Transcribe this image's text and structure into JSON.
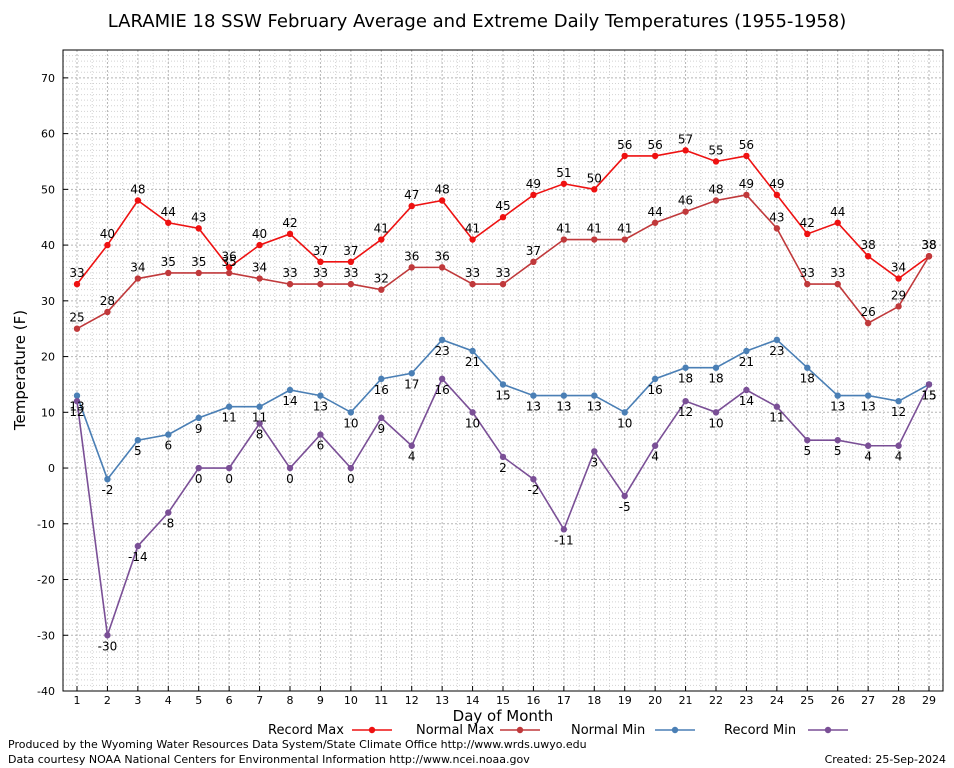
{
  "chart_data": {
    "type": "line",
    "title": "LARAMIE 18 SSW February Average and Extreme Daily Temperatures (1955-1958)",
    "xlabel": "Day of Month",
    "ylabel": "Temperature (F)",
    "xlim": [
      1,
      29
    ],
    "ylim": [
      -40,
      75
    ],
    "categories": [
      1,
      2,
      3,
      4,
      5,
      6,
      7,
      8,
      9,
      10,
      11,
      12,
      13,
      14,
      15,
      16,
      17,
      18,
      19,
      20,
      21,
      22,
      23,
      24,
      25,
      26,
      27,
      28,
      29
    ],
    "yticks": [
      -40,
      -30,
      -20,
      -10,
      0,
      10,
      20,
      30,
      40,
      50,
      60,
      70
    ],
    "grid": true,
    "legend_position": "bottom",
    "series": [
      {
        "name": "Record Max",
        "color": "#ee1111",
        "label_position": "above",
        "values": [
          33,
          40,
          48,
          44,
          43,
          36,
          40,
          42,
          37,
          37,
          41,
          47,
          48,
          41,
          45,
          49,
          51,
          50,
          56,
          56,
          57,
          55,
          56,
          49,
          42,
          44,
          38,
          34,
          38
        ]
      },
      {
        "name": "Normal Max",
        "color": "#c0393b",
        "label_position": "above",
        "values": [
          25,
          28,
          34,
          35,
          35,
          35,
          34,
          33,
          33,
          33,
          32,
          36,
          36,
          33,
          33,
          37,
          41,
          41,
          41,
          44,
          46,
          48,
          49,
          43,
          33,
          33,
          26,
          29,
          38
        ]
      },
      {
        "name": "Normal Min",
        "color": "#4a7fb5",
        "label_position": "below",
        "values": [
          13,
          -2,
          5,
          6,
          9,
          11,
          11,
          14,
          13,
          10,
          16,
          17,
          23,
          21,
          15,
          13,
          13,
          13,
          10,
          16,
          18,
          18,
          21,
          23,
          18,
          13,
          13,
          12,
          15
        ]
      },
      {
        "name": "Record Min",
        "color": "#7a4f96",
        "label_position": "below",
        "values": [
          12,
          -30,
          -14,
          -8,
          0,
          0,
          8,
          0,
          6,
          0,
          9,
          4,
          16,
          10,
          2,
          -2,
          -11,
          3,
          -5,
          4,
          12,
          10,
          14,
          11,
          5,
          5,
          4,
          4,
          15
        ]
      }
    ]
  },
  "footer": {
    "produced_by": "Produced by the Wyoming Water Resources Data System/State Climate Office http://www.wrds.uwyo.edu",
    "data_courtesy": "Data courtesy NOAA National Centers for Environmental Information http://www.ncei.noaa.gov",
    "created": "Created: 25-Sep-2024"
  }
}
